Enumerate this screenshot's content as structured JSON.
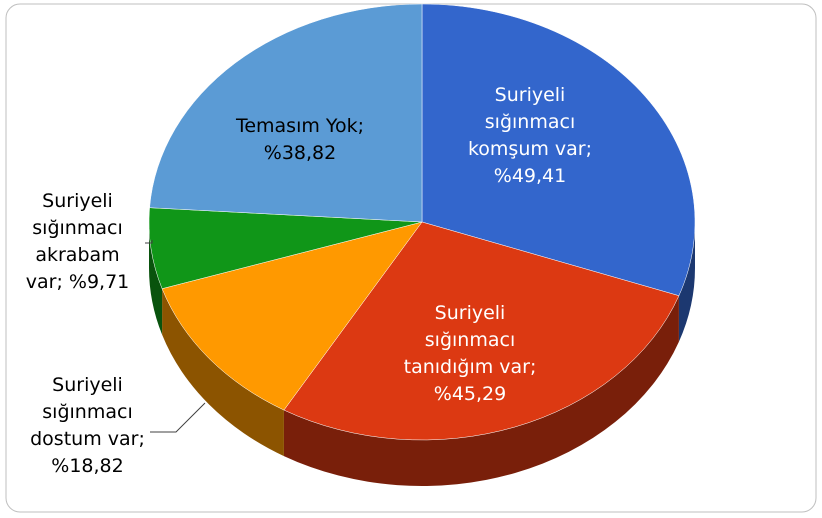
{
  "chart_data": {
    "type": "pie",
    "values": [
      49.41,
      45.29,
      18.82,
      9.71,
      38.82
    ],
    "value_labels": [
      "Suriyeli sığınmacı komşum var; %49,41",
      "Suriyeli sığınmacı tanıdığım var; %45,29",
      "Suriyeli sığınmacı dostum var; %18,82",
      "Suriyeli sığınmacı akrabam var; %9,71",
      "Temasım Yok; %38,82"
    ],
    "colors": [
      "#3366cc",
      "#dc3912",
      "#ff9900",
      "#109618",
      "#5b9bd5"
    ]
  }
}
